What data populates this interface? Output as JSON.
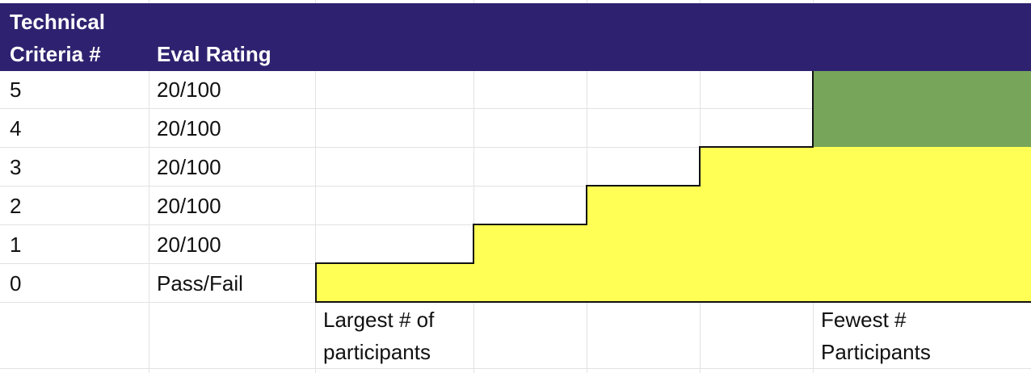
{
  "header": {
    "col1_line1": "Technical",
    "col1_line2": "Criteria #",
    "col2": "Eval Rating"
  },
  "rows": [
    {
      "criteria": "5",
      "rating": "20/100"
    },
    {
      "criteria": "4",
      "rating": "20/100"
    },
    {
      "criteria": "3",
      "rating": "20/100"
    },
    {
      "criteria": "2",
      "rating": "20/100"
    },
    {
      "criteria": "1",
      "rating": "20/100"
    },
    {
      "criteria": "0",
      "rating": "Pass/Fail"
    }
  ],
  "annotations": {
    "left_line1": "Largest # of",
    "left_line2": "participants",
    "right_line1": "Fewest #",
    "right_line2": "Participants"
  },
  "colors": {
    "header": "#2e2270",
    "yellow": "#ffff55",
    "green": "#77a65a"
  }
}
